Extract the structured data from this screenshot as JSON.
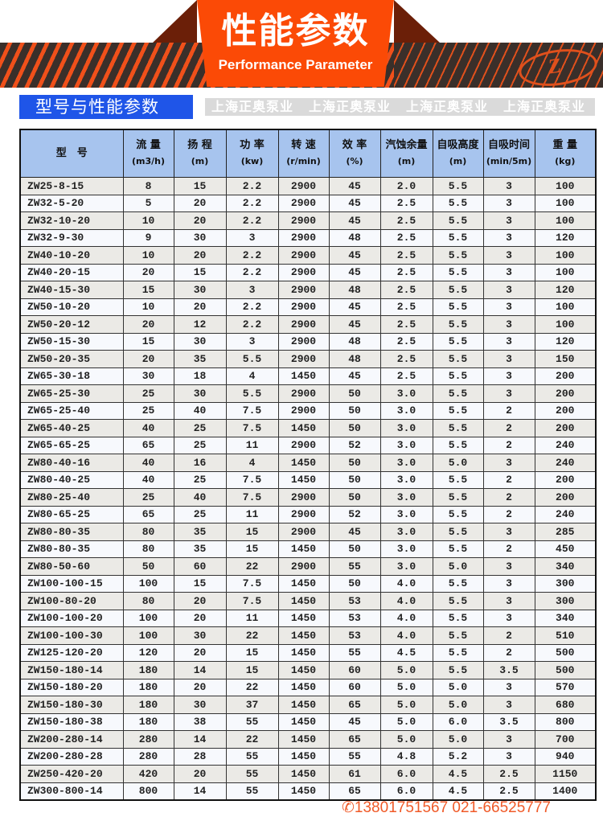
{
  "banner": {
    "title": "性能参数",
    "subtitle": "Performance Parameter",
    "logo_text": "Z"
  },
  "section_title": "型号与性能参数",
  "table": {
    "headers": [
      {
        "label": "型　号",
        "unit": ""
      },
      {
        "label": "流 量",
        "unit": "(m3/h)"
      },
      {
        "label": "扬 程",
        "unit": "(m)"
      },
      {
        "label": "功 率",
        "unit": "(kw)"
      },
      {
        "label": "转 速",
        "unit": "(r/min)"
      },
      {
        "label": "效 率",
        "unit": "(%)"
      },
      {
        "label": "汽蚀余量",
        "unit": "(m)"
      },
      {
        "label": "自吸高度",
        "unit": "(m)"
      },
      {
        "label": "自吸时间",
        "unit": "(min/5m)"
      },
      {
        "label": "重 量",
        "unit": "(kg)"
      }
    ],
    "rows": [
      [
        "ZW25-8-15",
        "8",
        "15",
        "2.2",
        "2900",
        "45",
        "2.0",
        "5.5",
        "3",
        "100"
      ],
      [
        "ZW32-5-20",
        "5",
        "20",
        "2.2",
        "2900",
        "45",
        "2.5",
        "5.5",
        "3",
        "100"
      ],
      [
        "ZW32-10-20",
        "10",
        "20",
        "2.2",
        "2900",
        "45",
        "2.5",
        "5.5",
        "3",
        "100"
      ],
      [
        "ZW32-9-30",
        "9",
        "30",
        "3",
        "2900",
        "48",
        "2.5",
        "5.5",
        "3",
        "120"
      ],
      [
        "ZW40-10-20",
        "10",
        "20",
        "2.2",
        "2900",
        "45",
        "2.5",
        "5.5",
        "3",
        "100"
      ],
      [
        "ZW40-20-15",
        "20",
        "15",
        "2.2",
        "2900",
        "45",
        "2.5",
        "5.5",
        "3",
        "100"
      ],
      [
        "ZW40-15-30",
        "15",
        "30",
        "3",
        "2900",
        "48",
        "2.5",
        "5.5",
        "3",
        "120"
      ],
      [
        "ZW50-10-20",
        "10",
        "20",
        "2.2",
        "2900",
        "45",
        "2.5",
        "5.5",
        "3",
        "100"
      ],
      [
        "ZW50-20-12",
        "20",
        "12",
        "2.2",
        "2900",
        "45",
        "2.5",
        "5.5",
        "3",
        "100"
      ],
      [
        "ZW50-15-30",
        "15",
        "30",
        "3",
        "2900",
        "48",
        "2.5",
        "5.5",
        "3",
        "120"
      ],
      [
        "ZW50-20-35",
        "20",
        "35",
        "5.5",
        "2900",
        "48",
        "2.5",
        "5.5",
        "3",
        "150"
      ],
      [
        "ZW65-30-18",
        "30",
        "18",
        "4",
        "1450",
        "45",
        "2.5",
        "5.5",
        "3",
        "200"
      ],
      [
        "ZW65-25-30",
        "25",
        "30",
        "5.5",
        "2900",
        "50",
        "3.0",
        "5.5",
        "3",
        "200"
      ],
      [
        "ZW65-25-40",
        "25",
        "40",
        "7.5",
        "2900",
        "50",
        "3.0",
        "5.5",
        "2",
        "200"
      ],
      [
        "ZW65-40-25",
        "40",
        "25",
        "7.5",
        "1450",
        "50",
        "3.0",
        "5.5",
        "2",
        "200"
      ],
      [
        "ZW65-65-25",
        "65",
        "25",
        "11",
        "2900",
        "52",
        "3.0",
        "5.5",
        "2",
        "240"
      ],
      [
        "ZW80-40-16",
        "40",
        "16",
        "4",
        "1450",
        "50",
        "3.0",
        "5.0",
        "3",
        "240"
      ],
      [
        "ZW80-40-25",
        "40",
        "25",
        "7.5",
        "1450",
        "50",
        "3.0",
        "5.5",
        "2",
        "200"
      ],
      [
        "ZW80-25-40",
        "25",
        "40",
        "7.5",
        "2900",
        "50",
        "3.0",
        "5.5",
        "2",
        "200"
      ],
      [
        "ZW80-65-25",
        "65",
        "25",
        "11",
        "2900",
        "52",
        "3.0",
        "5.5",
        "2",
        "240"
      ],
      [
        "ZW80-80-35",
        "80",
        "35",
        "15",
        "2900",
        "45",
        "3.0",
        "5.5",
        "3",
        "285"
      ],
      [
        "ZW80-80-35",
        "80",
        "35",
        "15",
        "1450",
        "50",
        "3.0",
        "5.5",
        "2",
        "450"
      ],
      [
        "ZW80-50-60",
        "50",
        "60",
        "22",
        "2900",
        "55",
        "3.0",
        "5.0",
        "3",
        "340"
      ],
      [
        "ZW100-100-15",
        "100",
        "15",
        "7.5",
        "1450",
        "50",
        "4.0",
        "5.5",
        "3",
        "300"
      ],
      [
        "ZW100-80-20",
        "80",
        "20",
        "7.5",
        "1450",
        "53",
        "4.0",
        "5.5",
        "3",
        "300"
      ],
      [
        "ZW100-100-20",
        "100",
        "20",
        "11",
        "1450",
        "53",
        "4.0",
        "5.5",
        "3",
        "340"
      ],
      [
        "ZW100-100-30",
        "100",
        "30",
        "22",
        "1450",
        "53",
        "4.0",
        "5.5",
        "2",
        "510"
      ],
      [
        "ZW125-120-20",
        "120",
        "20",
        "15",
        "1450",
        "55",
        "4.5",
        "5.5",
        "2",
        "500"
      ],
      [
        "ZW150-180-14",
        "180",
        "14",
        "15",
        "1450",
        "60",
        "5.0",
        "5.5",
        "3.5",
        "500"
      ],
      [
        "ZW150-180-20",
        "180",
        "20",
        "22",
        "1450",
        "60",
        "5.0",
        "5.0",
        "3",
        "570"
      ],
      [
        "ZW150-180-30",
        "180",
        "30",
        "37",
        "1450",
        "65",
        "5.0",
        "5.0",
        "3",
        "680"
      ],
      [
        "ZW150-180-38",
        "180",
        "38",
        "55",
        "1450",
        "45",
        "5.0",
        "6.0",
        "3.5",
        "800"
      ],
      [
        "ZW200-280-14",
        "280",
        "14",
        "22",
        "1450",
        "65",
        "5.0",
        "5.0",
        "3",
        "700"
      ],
      [
        "ZW200-280-28",
        "280",
        "28",
        "55",
        "1450",
        "55",
        "4.8",
        "5.2",
        "3",
        "940"
      ],
      [
        "ZW250-420-20",
        "420",
        "20",
        "55",
        "1450",
        "61",
        "6.0",
        "4.5",
        "2.5",
        "1150"
      ],
      [
        "ZW300-800-14",
        "800",
        "14",
        "55",
        "1450",
        "65",
        "6.0",
        "4.5",
        "2.5",
        "1400"
      ]
    ]
  },
  "watermark": {
    "text": "上海正奥泵业",
    "phone": "✆13801751567  021-66525777"
  },
  "colors": {
    "banner_orange": "#fb4a06",
    "section_blue": "#1f55e8",
    "header_blue": "#a7c4ee"
  }
}
